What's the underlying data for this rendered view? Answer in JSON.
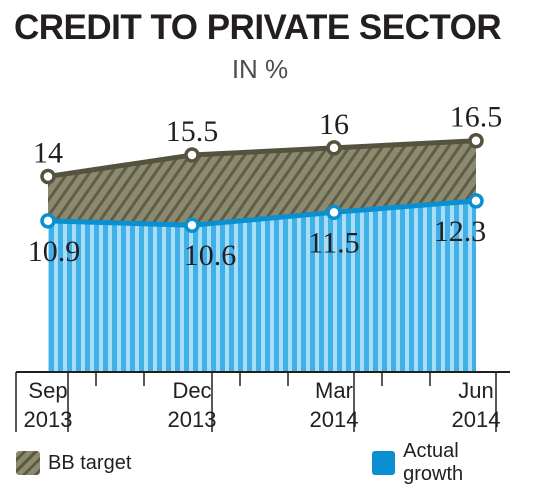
{
  "header": {
    "title": "CREDIT TO PRIVATE SECTOR",
    "subtitle": "IN %"
  },
  "legend": {
    "target_label": "BB target",
    "actual_label": "Actual growth"
  },
  "colors": {
    "target_line": "#55533f",
    "target_fill": "#8c8a6e",
    "actual_line": "#0a8fd0",
    "actual_fill": "#7fcaf0",
    "text": "#231f20"
  },
  "chart_data": {
    "type": "area",
    "title": "CREDIT TO PRIVATE SECTOR",
    "subtitle": "IN %",
    "categories": [
      [
        "Sep",
        "2013"
      ],
      [
        "Dec",
        "2013"
      ],
      [
        "Mar",
        "2014"
      ],
      [
        "Jun",
        "2014"
      ]
    ],
    "series": [
      {
        "name": "BB target",
        "values": [
          14,
          15.5,
          16,
          16.5
        ],
        "labels": [
          "14",
          "15.5",
          "16",
          "16.5"
        ]
      },
      {
        "name": "Actual growth",
        "values": [
          10.9,
          10.6,
          11.5,
          12.3
        ],
        "labels": [
          "10.9",
          "10.6",
          "11.5",
          "12.3"
        ]
      }
    ],
    "grid": false,
    "legend": "bottom"
  }
}
